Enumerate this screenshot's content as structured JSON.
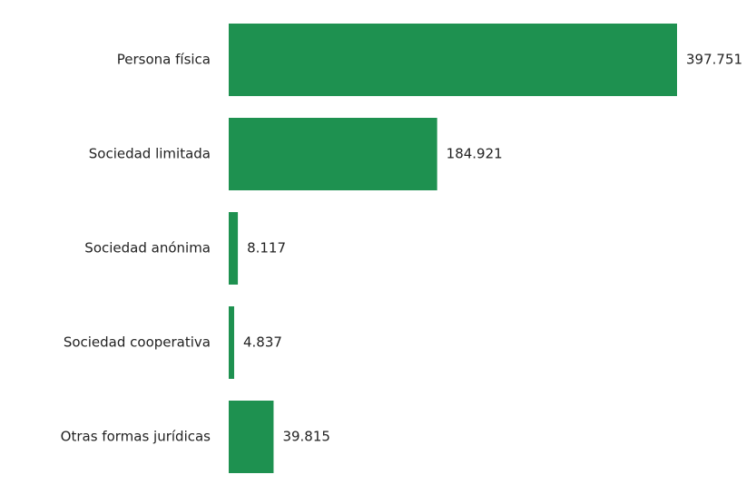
{
  "colors": {
    "bar": "#1e9150",
    "text": "#222222",
    "background": "#ffffff"
  },
  "chart_data": {
    "type": "bar",
    "orientation": "horizontal",
    "categories": [
      "Persona física",
      "Sociedad limitada",
      "Sociedad anónima",
      "Sociedad cooperativa",
      "Otras formas jurídicas"
    ],
    "values": [
      397751,
      184921,
      8117,
      4837,
      39815
    ],
    "value_labels": [
      "397.751",
      "184.921",
      "8.117",
      "4.837",
      "39.815"
    ],
    "title": "",
    "xlabel": "",
    "ylabel": "",
    "xlim": [
      0,
      397751
    ],
    "grid": false,
    "legend": "none"
  }
}
